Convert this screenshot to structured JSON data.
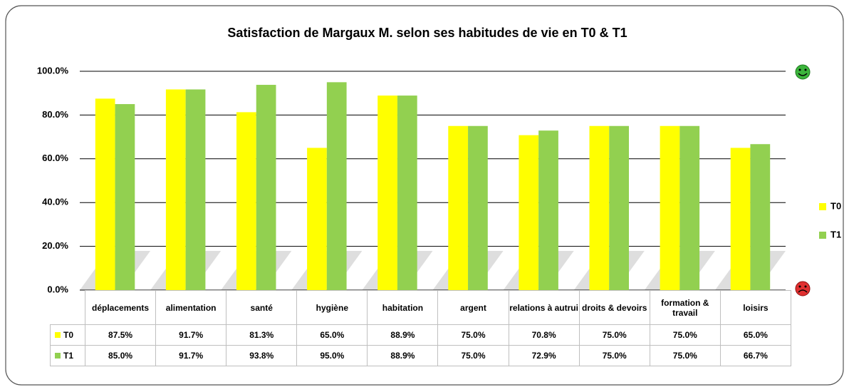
{
  "chart_data": {
    "type": "bar",
    "title": "Satisfaction  de Margaux M. selon ses habitudes de vie en T0 & T1",
    "categories": [
      "déplacements",
      "alimentation",
      "santé",
      "hygiène",
      "habitation",
      "argent",
      "relations à autrui",
      "droits & devoirs",
      "formation & travail",
      "loisirs"
    ],
    "series": [
      {
        "name": "T0",
        "color": "#ffff00",
        "values": [
          87.5,
          91.7,
          81.3,
          65.0,
          88.9,
          75.0,
          70.8,
          75.0,
          75.0,
          65.0
        ],
        "value_labels": [
          "87.5%",
          "91.7%",
          "81.3%",
          "65.0%",
          "88.9%",
          "75.0%",
          "70.8%",
          "75.0%",
          "75.0%",
          "65.0%"
        ]
      },
      {
        "name": "T1",
        "color": "#92d050",
        "values": [
          85.0,
          91.7,
          93.8,
          95.0,
          88.9,
          75.0,
          72.9,
          75.0,
          75.0,
          66.7
        ],
        "value_labels": [
          "85.0%",
          "91.7%",
          "93.8%",
          "95.0%",
          "88.9%",
          "75.0%",
          "72.9%",
          "75.0%",
          "75.0%",
          "66.7%"
        ]
      }
    ],
    "ylim": [
      0,
      100
    ],
    "yticks": [
      {
        "value": 0,
        "label": "0.0%"
      },
      {
        "value": 20,
        "label": "20.0%"
      },
      {
        "value": 40,
        "label": "40.0%"
      },
      {
        "value": 60,
        "label": "60.0%"
      },
      {
        "value": 80,
        "label": "80.0%"
      },
      {
        "value": 100,
        "label": "100.0%"
      }
    ],
    "grid": true,
    "legend": "right"
  }
}
